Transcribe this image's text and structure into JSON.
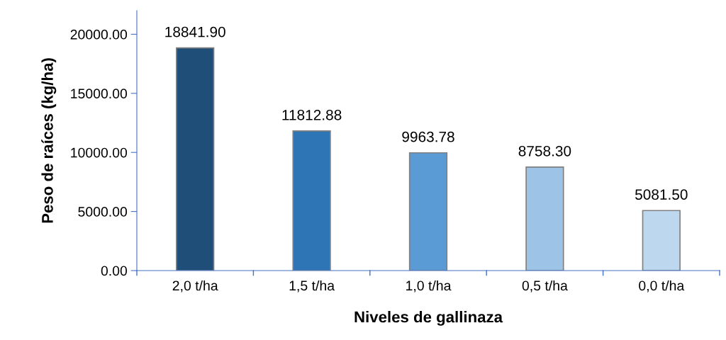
{
  "chart_data": {
    "type": "bar",
    "xlabel": "Niveles de gallinaza",
    "ylabel": "Peso de raíces (kg/ha)",
    "categories": [
      "2,0 t/ha",
      "1,5 t/ha",
      "1,0 t/ha",
      "0,5 t/ha",
      "0,0 t/ha"
    ],
    "values": [
      18841.9,
      11812.88,
      9963.78,
      8758.3,
      5081.5
    ],
    "colors": [
      "#1f4e79",
      "#2e75b6",
      "#5b9bd5",
      "#9dc3e6",
      "#bdd7ee"
    ],
    "value_labels": [
      "18841.90",
      "11812.88",
      "9963.78",
      "8758.30",
      "5081.50"
    ],
    "ylim": [
      0,
      22000
    ],
    "yticks": [
      {
        "value": 0,
        "label": "0.00"
      },
      {
        "value": 5000,
        "label": "5000.00"
      },
      {
        "value": 10000,
        "label": "10000.00"
      },
      {
        "value": 15000,
        "label": "15000.00"
      },
      {
        "value": 20000,
        "label": "20000.00"
      }
    ],
    "grid": false,
    "legend": false
  }
}
